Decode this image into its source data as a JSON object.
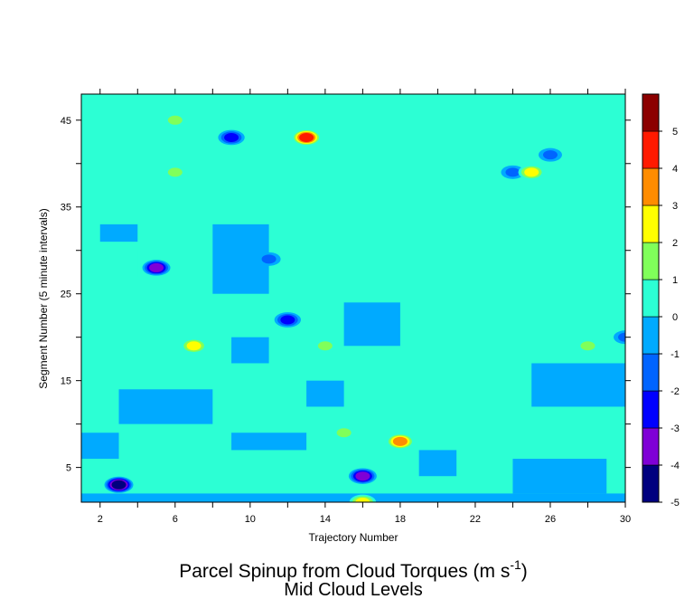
{
  "chart_data": {
    "type": "heatmap",
    "title": "Parcel Spinup from Cloud Torques (m s",
    "title_superscript": "-1",
    "title_suffix": ")",
    "subtitle": "Mid Cloud Levels",
    "xlabel": "Trajectory Number",
    "ylabel": "Segment Number (5 minute intervals)",
    "xlim": [
      1,
      30
    ],
    "ylim": [
      1,
      48
    ],
    "x_ticks": [
      2,
      6,
      10,
      14,
      18,
      22,
      26,
      30
    ],
    "x_minor_ticks": [
      4,
      8,
      12,
      16,
      20,
      24,
      28
    ],
    "y_ticks": [
      5,
      15,
      25,
      35,
      45
    ],
    "y_minor_ticks": [
      10,
      20,
      30,
      40
    ],
    "colorbar": {
      "levels": [
        -5,
        -4,
        -3,
        -2,
        -1,
        0,
        1,
        2,
        3,
        4,
        5
      ],
      "labels": [
        "-5",
        "-4",
        "-3",
        "-2",
        "-1",
        "0",
        "1",
        "2",
        "3",
        "4",
        "5"
      ],
      "colors": [
        "#00007f",
        "#7f00d6",
        "#0000ff",
        "#0064ff",
        "#00aaff",
        "#2cffd4",
        "#80ff5a",
        "#ffff00",
        "#ff8c00",
        "#ff1a00",
        "#8c0000"
      ]
    },
    "background_level": 0,
    "regions": [
      {
        "x": [
          1,
          30
        ],
        "y": [
          1,
          23
        ],
        "value": 0.5
      },
      {
        "x": [
          1,
          4
        ],
        "y": [
          23,
          30
        ],
        "value": 0.5
      },
      {
        "x": [
          4,
          6
        ],
        "y": [
          27,
          33
        ],
        "value": 0.5
      },
      {
        "x": [
          7,
          10
        ],
        "y": [
          34,
          41
        ],
        "value": 0.5
      },
      {
        "x": [
          5,
          17
        ],
        "y": [
          44,
          48
        ],
        "value": 0.5
      },
      {
        "x": [
          11,
          14
        ],
        "y": [
          23,
          30
        ],
        "value": 0.5
      },
      {
        "x": [
          14,
          19
        ],
        "y": [
          30,
          41
        ],
        "value": 0.5
      },
      {
        "x": [
          20,
          30
        ],
        "y": [
          23,
          35
        ],
        "value": 0.5
      },
      {
        "x": [
          22,
          30
        ],
        "y": [
          36,
          42
        ],
        "value": 0.5
      },
      {
        "x": [
          1,
          3
        ],
        "y": [
          36,
          41
        ],
        "value": 0.5
      },
      {
        "x": [
          1,
          3
        ],
        "y": [
          6,
          9
        ],
        "value": -0.5
      },
      {
        "x": [
          3,
          8
        ],
        "y": [
          10,
          14
        ],
        "value": -0.5
      },
      {
        "x": [
          9,
          13
        ],
        "y": [
          7,
          9
        ],
        "value": -0.5
      },
      {
        "x": [
          19,
          21
        ],
        "y": [
          4,
          7
        ],
        "value": -0.5
      },
      {
        "x": [
          24,
          29
        ],
        "y": [
          2,
          6
        ],
        "value": -0.5
      },
      {
        "x": [
          25,
          30
        ],
        "y": [
          12,
          17
        ],
        "value": -0.5
      },
      {
        "x": [
          9,
          11
        ],
        "y": [
          17,
          20
        ],
        "value": -0.5
      },
      {
        "x": [
          13,
          15
        ],
        "y": [
          12,
          15
        ],
        "value": -0.5
      },
      {
        "x": [
          2,
          4
        ],
        "y": [
          31,
          33
        ],
        "value": -0.5
      },
      {
        "x": [
          1,
          30
        ],
        "y": [
          1,
          2
        ],
        "value": -0.5
      },
      {
        "x": [
          15,
          18
        ],
        "y": [
          19,
          24
        ],
        "value": -0.5
      },
      {
        "x": [
          8,
          11
        ],
        "y": [
          25,
          33
        ],
        "value": -0.5
      }
    ],
    "features": [
      {
        "x": 3,
        "y": 3,
        "value": -4.5
      },
      {
        "x": 5,
        "y": 28,
        "value": -3.5
      },
      {
        "x": 16,
        "y": 4,
        "value": -3.5
      },
      {
        "x": 12,
        "y": 22,
        "value": -2.5
      },
      {
        "x": 9,
        "y": 43,
        "value": -2.5
      },
      {
        "x": 26,
        "y": 41,
        "value": -1.5
      },
      {
        "x": 11,
        "y": 29,
        "value": -1.5
      },
      {
        "x": 30,
        "y": 20,
        "value": -1.5
      },
      {
        "x": 24,
        "y": 39,
        "value": -1.5
      },
      {
        "x": 13,
        "y": 43,
        "value": 4.5
      },
      {
        "x": 18,
        "y": 8,
        "value": 3.5
      },
      {
        "x": 7,
        "y": 19,
        "value": 2.5
      },
      {
        "x": 6,
        "y": 39,
        "value": 1.5
      },
      {
        "x": 28,
        "y": 19,
        "value": 1.5
      },
      {
        "x": 25,
        "y": 39,
        "value": 2.5
      },
      {
        "x": 15,
        "y": 9,
        "value": 1.5
      },
      {
        "x": 14,
        "y": 19,
        "value": 1.5
      },
      {
        "x": 6,
        "y": 45,
        "value": 1.5
      },
      {
        "x": 16,
        "y": 1,
        "value": 2.5
      }
    ]
  }
}
